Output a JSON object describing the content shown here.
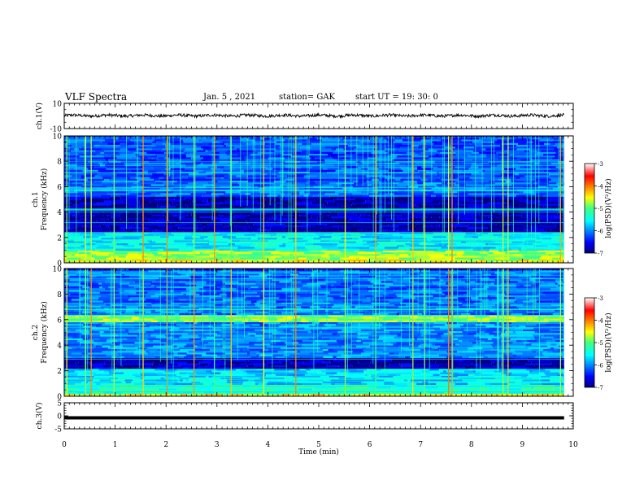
{
  "header": {
    "title": "VLF Spectra",
    "date": "Jan. 5 , 2021",
    "station": "station= GAK",
    "start": "start UT = 19: 30: 0"
  },
  "chart_data": [
    {
      "type": "line",
      "panel": "ch1-waveform",
      "ylabel": "ch.1(V)",
      "ylim": [
        -10,
        10
      ],
      "yticks": [
        "10",
        "-10"
      ],
      "xlim": [
        0,
        10
      ],
      "approx_level": 0.3,
      "approx_noise_amplitude": 1.2,
      "data_end_min": 9.82,
      "color": "#000000"
    },
    {
      "type": "heatmap",
      "panel": "ch1-spectrogram",
      "ylabel_line1": "ch.1",
      "ylabel_line2": "Frequency (kHz)",
      "ylim": [
        0,
        10
      ],
      "yticks": [
        "0",
        "2",
        "4",
        "6",
        "8",
        "10"
      ],
      "xlim": [
        0,
        10
      ],
      "data_end_min": 9.82,
      "colorbar": {
        "label": "log(PSD)(V²/Hz)",
        "range": [
          -7,
          -3
        ],
        "ticks": [
          "-3",
          "-4",
          "-5",
          "-6",
          "-7"
        ]
      },
      "band_levels_by_khz": [
        {
          "from": 0.0,
          "to": 0.3,
          "level": -4.6
        },
        {
          "from": 0.3,
          "to": 1.0,
          "level": -4.8
        },
        {
          "from": 1.0,
          "to": 2.4,
          "level": -5.6
        },
        {
          "from": 2.4,
          "to": 5.3,
          "level": -6.8
        },
        {
          "from": 5.3,
          "to": 6.5,
          "level": -6.1
        },
        {
          "from": 6.5,
          "to": 10.0,
          "level": -6.2
        }
      ],
      "burst_times_min": [
        0.05,
        0.42,
        0.53,
        0.98,
        1.55,
        2.02,
        2.55,
        2.95,
        3.28,
        3.92,
        4.55,
        5.52,
        6.12,
        6.85,
        7.08,
        7.55,
        7.62,
        8.62,
        8.72,
        9.75
      ]
    },
    {
      "type": "heatmap",
      "panel": "ch2-spectrogram",
      "ylabel_line1": "ch.2",
      "ylabel_line2": "Frequency (kHz)",
      "ylim": [
        0,
        10
      ],
      "yticks": [
        "0",
        "2",
        "4",
        "6",
        "8",
        "10"
      ],
      "xlim": [
        0,
        10
      ],
      "data_end_min": 9.82,
      "colorbar": {
        "label": "log(PSD)(V²/Hz)",
        "range": [
          -7,
          -3
        ],
        "ticks": [
          "-3",
          "-4",
          "-5",
          "-6",
          "-7"
        ]
      },
      "band_levels_by_khz": [
        {
          "from": 0.0,
          "to": 0.3,
          "level": -4.5
        },
        {
          "from": 0.3,
          "to": 1.0,
          "level": -5.3
        },
        {
          "from": 1.0,
          "to": 2.2,
          "level": -5.7
        },
        {
          "from": 2.2,
          "to": 3.1,
          "level": -6.8
        },
        {
          "from": 3.1,
          "to": 5.8,
          "level": -6.0
        },
        {
          "from": 5.8,
          "to": 6.4,
          "level": -4.8
        },
        {
          "from": 6.4,
          "to": 10.0,
          "level": -6.1
        }
      ],
      "burst_times_min": [
        0.05,
        0.42,
        0.53,
        0.98,
        1.55,
        2.02,
        2.55,
        2.95,
        3.28,
        3.92,
        4.55,
        5.52,
        6.12,
        6.85,
        7.08,
        7.55,
        7.62,
        8.62,
        8.72,
        9.75
      ]
    },
    {
      "type": "line",
      "panel": "ch3-waveform",
      "ylabel": "ch.3(V)",
      "ylim": [
        -5,
        5
      ],
      "yticks": [
        "5",
        "0",
        "-5"
      ],
      "xlim": [
        0,
        10
      ],
      "xticks": [
        "0",
        "1",
        "2",
        "3",
        "4",
        "5",
        "6",
        "7",
        "8",
        "9",
        "10"
      ],
      "xlabel": "Time (min)",
      "approx_level": -0.8,
      "data_end_min": 9.82,
      "color": "#000000"
    }
  ]
}
